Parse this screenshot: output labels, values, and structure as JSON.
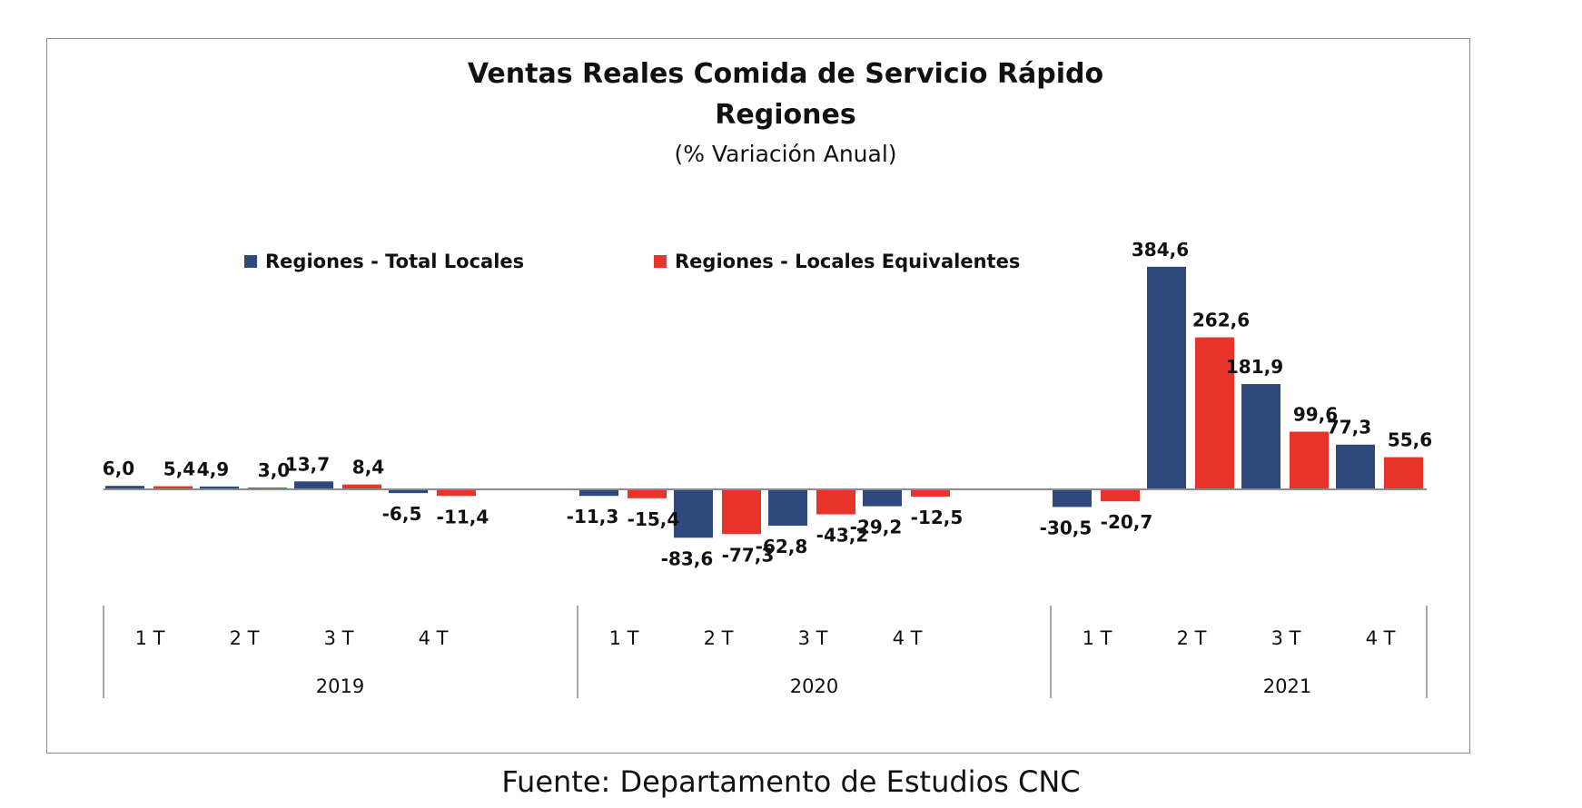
{
  "chart_data": {
    "type": "bar",
    "title": "Ventas Reales Comida de Servicio Rápido",
    "title_line2": "Regiones",
    "subtitle": "(% Variación Anual)",
    "legend_position": "top",
    "grid": false,
    "groups": [
      {
        "label": "2019",
        "quarters": [
          "1 T",
          "2 T",
          "3 T",
          "4 T"
        ]
      },
      {
        "label": "2020",
        "quarters": [
          "1 T",
          "2 T",
          "3 T",
          "4 T"
        ]
      },
      {
        "label": "2021",
        "quarters": [
          "1 T",
          "2 T",
          "3 T",
          "4 T"
        ]
      }
    ],
    "series": [
      {
        "name": "Regiones - Total Locales",
        "color": "#2e4a7d",
        "values": [
          6.0,
          4.9,
          13.7,
          -6.5,
          -11.3,
          -83.6,
          -62.8,
          -29.2,
          -30.5,
          384.6,
          181.9,
          77.3
        ],
        "labels": [
          "6,0",
          "4,9",
          "13,7",
          "-6,5",
          "-11,3",
          "-83,6",
          "-62,8",
          "-29,2",
          "-30,5",
          "384,6",
          "181,9",
          "77,3"
        ]
      },
      {
        "name": "Regiones - Locales Equivalentes",
        "color": "#e8352b",
        "values": [
          5.4,
          3.0,
          8.4,
          -11.4,
          -15.4,
          -77.3,
          -43.2,
          -12.5,
          -20.7,
          262.6,
          99.6,
          55.6
        ],
        "labels": [
          "5,4",
          "3,0",
          "8,4",
          "-11,4",
          "-15,4",
          "-77,3",
          "-43,2",
          "-12,5",
          "-20,7",
          "262,6",
          "99,6",
          "55,6"
        ]
      }
    ],
    "ylim": [
      -100,
      420
    ]
  },
  "source_note": "Fuente: Departamento de Estudios CNC"
}
